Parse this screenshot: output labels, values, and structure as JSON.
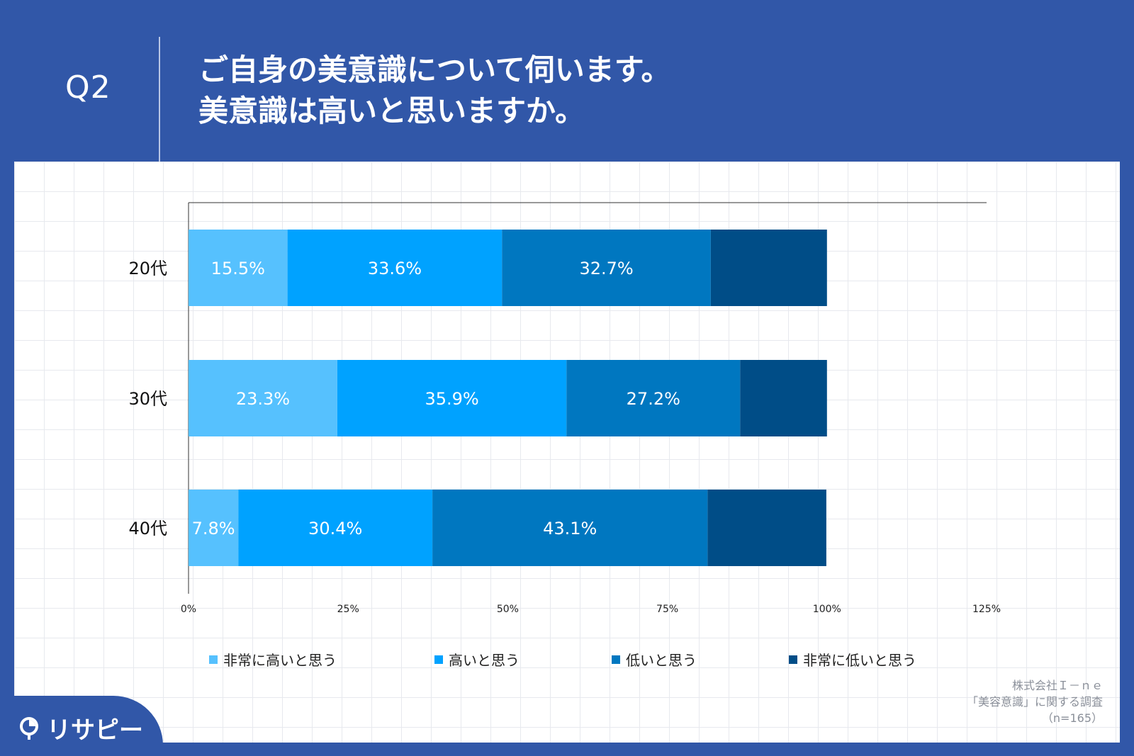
{
  "header": {
    "question_label": "Q2",
    "title_line1": "ご自身の美意識について伺います。",
    "title_line2": "美意識は高いと思いますか。"
  },
  "colors": {
    "background": "#3157a8",
    "very_high": "#56c1fe",
    "high": "#00a2ff",
    "low": "#0077c0",
    "very_low": "#004d87"
  },
  "chart_data": {
    "type": "bar",
    "orientation": "horizontal",
    "stacked": true,
    "categories": [
      "20代",
      "30代",
      "40代"
    ],
    "series": [
      {
        "name": "非常に高いと思う",
        "values": [
          15.5,
          23.3,
          7.8
        ],
        "labels": [
          "15.5%",
          "23.3%",
          "7.8%"
        ]
      },
      {
        "name": "高いと思う",
        "values": [
          33.6,
          35.9,
          30.4
        ],
        "labels": [
          "33.6%",
          "35.9%",
          "30.4%"
        ]
      },
      {
        "name": "低いと思う",
        "values": [
          32.7,
          27.2,
          43.1
        ],
        "labels": [
          "32.7%",
          "27.2%",
          "43.1%"
        ]
      },
      {
        "name": "非常に低いと思う",
        "values": [
          18.2,
          13.6,
          18.6
        ],
        "labels": [
          "",
          "",
          ""
        ]
      }
    ],
    "x_ticks": [
      "0%",
      "25%",
      "50%",
      "75%",
      "100%",
      "125%"
    ],
    "x_tick_values": [
      0,
      25,
      50,
      75,
      100,
      125
    ],
    "xlim": [
      0,
      125
    ],
    "grid": false,
    "legend_position": "bottom"
  },
  "source": {
    "company": "株式会社Ｉ－ｎｅ",
    "survey": "「美容意識」に関する調査",
    "sample": "（n=165）"
  },
  "logo": {
    "text": "リサピー"
  }
}
